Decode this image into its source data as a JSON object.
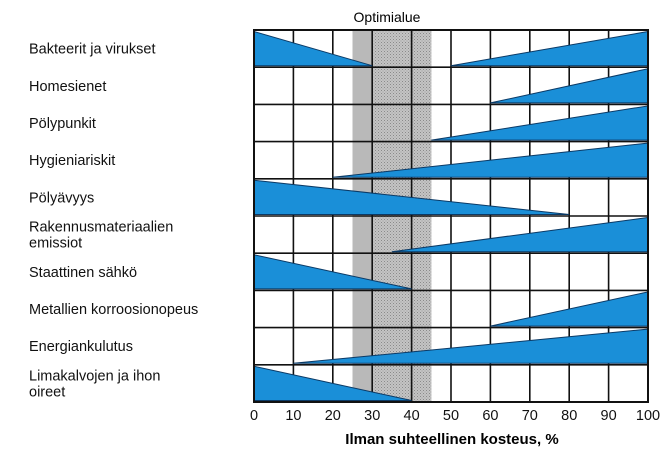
{
  "chart_data": {
    "type": "bar",
    "title": "Optimialue",
    "xlabel": "Ilman suhteellinen kosteus, %",
    "ylabel": "",
    "xlim": [
      0,
      100
    ],
    "xticks": [
      0,
      10,
      20,
      30,
      40,
      50,
      60,
      70,
      80,
      90,
      100
    ],
    "grid": true,
    "optimal_range": [
      25,
      45
    ],
    "optimal_core": [
      30,
      45
    ],
    "colors": {
      "wedge": "#1a8fd8",
      "wedge_stroke": "#0b3a66",
      "optimal": "#b9b9b9",
      "grid": "#111111"
    },
    "categories": [
      "Bakteerit ja virukset",
      "Homesienet",
      "Pölypunkit",
      "Hygieniariskit",
      "Pölyävyys",
      "Rakennusmateriaalien emissiot",
      "Staattinen sähkö",
      "Metallien korroosionopeus",
      "Energiankulutus",
      "Limakalvojen ja ihon oireet"
    ],
    "series": [
      {
        "name": "",
        "wedges": [
          {
            "category": "Bakteerit ja virukset",
            "from": 0,
            "to": 30,
            "peak": 0
          },
          {
            "category": "Bakteerit ja virukset",
            "from": 50,
            "to": 100,
            "peak": 100
          },
          {
            "category": "Homesienet",
            "from": 60,
            "to": 100,
            "peak": 100
          },
          {
            "category": "Pölypunkit",
            "from": 45,
            "to": 100,
            "peak": 100
          },
          {
            "category": "Hygieniariskit",
            "from": 20,
            "to": 100,
            "peak": 100
          },
          {
            "category": "Pölyävyys",
            "from": 0,
            "to": 80,
            "peak": 0
          },
          {
            "category": "Rakennusmateriaalien emissiot",
            "from": 35,
            "to": 100,
            "peak": 100
          },
          {
            "category": "Staattinen sähkö",
            "from": 0,
            "to": 40,
            "peak": 0
          },
          {
            "category": "Metallien korroosionopeus",
            "from": 60,
            "to": 100,
            "peak": 100
          },
          {
            "category": "Energiankulutus",
            "from": 10,
            "to": 100,
            "peak": 100
          },
          {
            "category": "Limakalvojen ja ihon oireet",
            "from": 0,
            "to": 40,
            "peak": 0
          }
        ]
      }
    ]
  }
}
